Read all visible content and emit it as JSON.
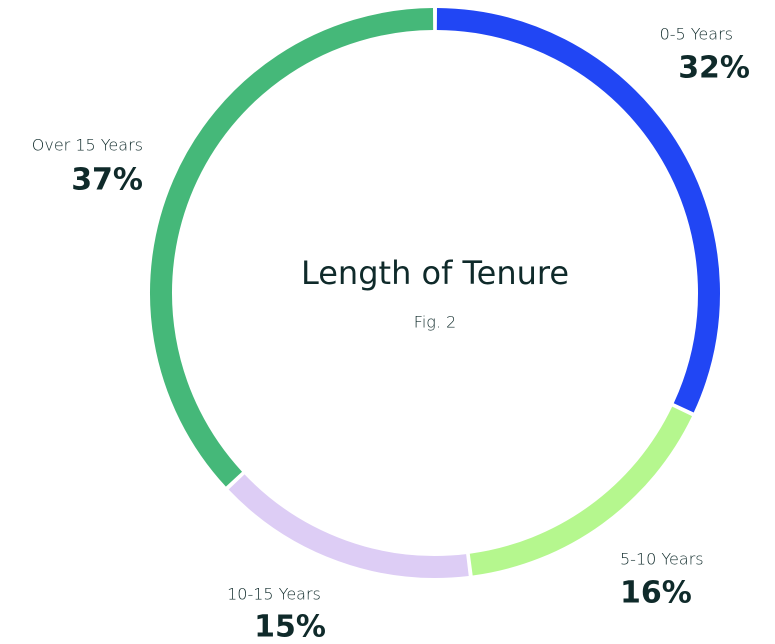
{
  "chart_data": {
    "type": "donut",
    "title": "Length of Tenure",
    "subtitle": "Fig. 2",
    "categories": [
      "0-5 Years",
      "5-10 Years",
      "10-15 Years",
      "Over 15 Years"
    ],
    "values": [
      32,
      16,
      15,
      37
    ],
    "value_labels": [
      "32%",
      "16%",
      "15%",
      "37%"
    ],
    "colors": [
      "#2146f4",
      "#b5f78e",
      "#ddcdf5",
      "#45b879"
    ]
  }
}
